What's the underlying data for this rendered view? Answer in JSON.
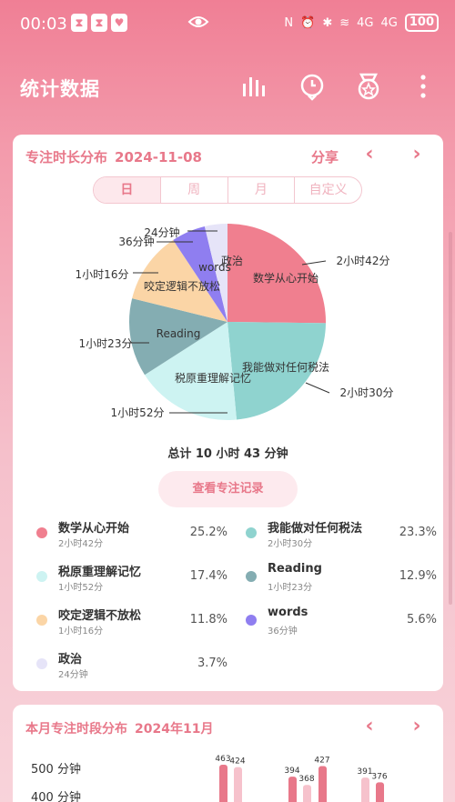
{
  "status": {
    "time": "00:03",
    "battery": "100",
    "network": "4G"
  },
  "header": {
    "title": "统计数据",
    "icons": [
      "bar-chart-icon",
      "clock-icon",
      "medal-icon",
      "more-icon"
    ]
  },
  "focus_card": {
    "title": "专注时长分布",
    "date": "2024-11-08",
    "share_label": "分享",
    "tabs": [
      {
        "label": "日",
        "active": true
      },
      {
        "label": "周",
        "active": false
      },
      {
        "label": "月",
        "active": false
      },
      {
        "label": "自定义",
        "active": false
      }
    ],
    "total": "总计 10 小时 43 分钟",
    "record_button": "查看专注记录",
    "colors": {
      "accent": "#e8788a",
      "slice1": "#f07f8f",
      "slice2": "#8fd3cf",
      "slice3": "#cdf3f2",
      "slice4": "#84adb2",
      "slice5": "#fbd5a6",
      "slice6": "#8f7ef0",
      "slice7": "#e6e4f8"
    },
    "pie_labels": [
      {
        "inner": "数学从心开始",
        "outer": "2小时42分"
      },
      {
        "inner": "我能做对任何税法",
        "outer": "2小时30分"
      },
      {
        "inner": "税原重理解记忆",
        "outer": "1小时52分"
      },
      {
        "inner": "Reading",
        "outer": "1小时23分"
      },
      {
        "inner": "咬定逻辑不放松",
        "outer": "1小时16分"
      },
      {
        "inner": "words",
        "outer": "36分钟"
      },
      {
        "inner": "政治",
        "outer": "24分钟"
      }
    ],
    "legend": [
      {
        "name": "数学从心开始",
        "duration": "2小时42分",
        "percent": "25.2%"
      },
      {
        "name": "我能做对任何税法",
        "duration": "2小时30分",
        "percent": "23.3%"
      },
      {
        "name": "税原重理解记忆",
        "duration": "1小时52分",
        "percent": "17.4%"
      },
      {
        "name": "Reading",
        "duration": "1小时23分",
        "percent": "12.9%"
      },
      {
        "name": "咬定逻辑不放松",
        "duration": "1小时16分",
        "percent": "11.8%"
      },
      {
        "name": "words",
        "duration": "36分钟",
        "percent": "5.6%"
      },
      {
        "name": "政治",
        "duration": "24分钟",
        "percent": "3.7%"
      }
    ]
  },
  "month_card": {
    "title": "本月专注时段分布",
    "month": "2024年11月",
    "y_labels": [
      "500 分钟",
      "400 分钟"
    ],
    "bar_values": [
      "463",
      "424",
      "394",
      "368",
      "427",
      "391",
      "376"
    ]
  },
  "chart_data": {
    "type": "pie",
    "title": "专注时长分布",
    "categories": [
      "数学从心开始",
      "我能做对任何税法",
      "税原重理解记忆",
      "Reading",
      "咬定逻辑不放松",
      "words",
      "政治"
    ],
    "values": [
      162,
      150,
      112,
      83,
      76,
      36,
      24
    ],
    "percents": [
      25.2,
      23.3,
      17.4,
      12.9,
      11.8,
      5.6,
      3.7
    ],
    "unit": "分钟"
  }
}
